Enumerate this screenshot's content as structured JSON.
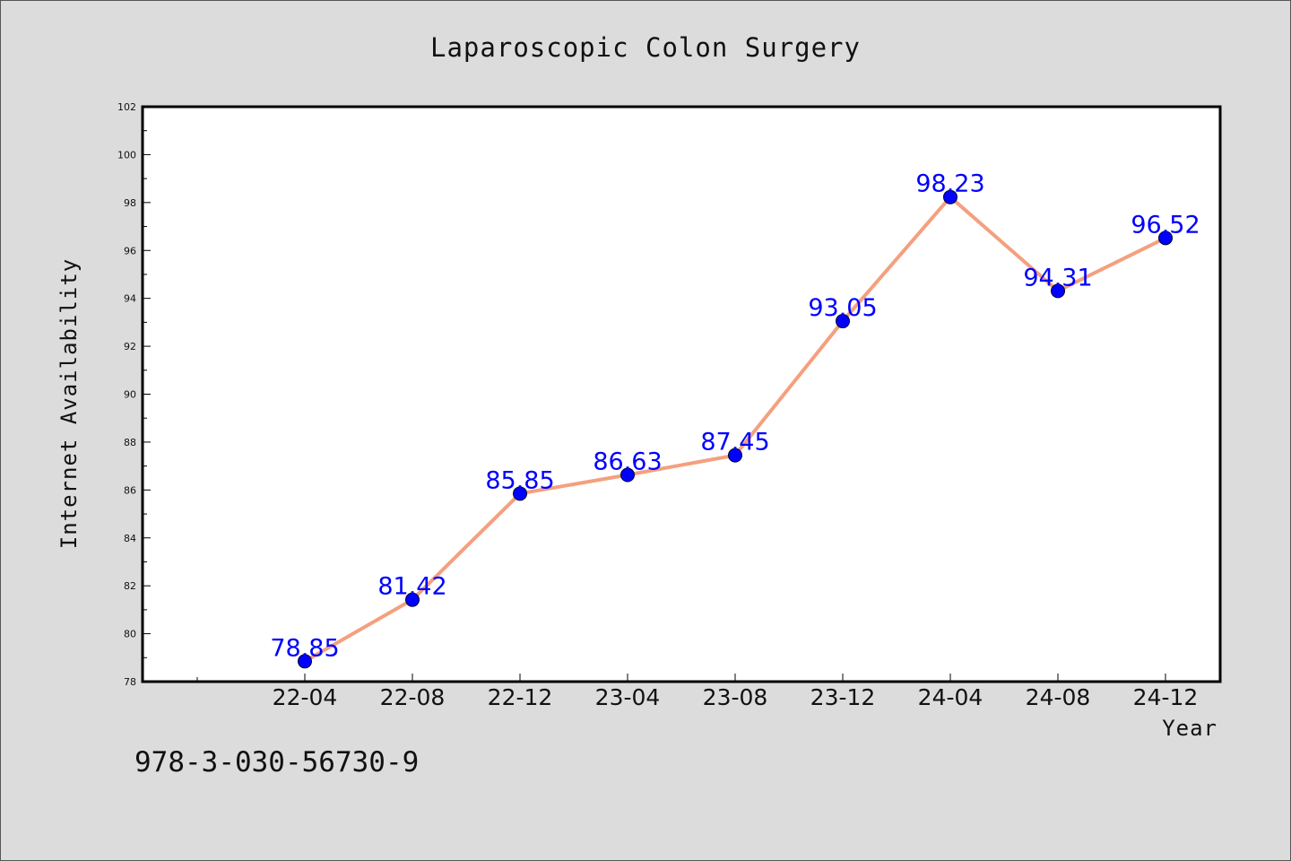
{
  "footnote": "978-3-030-56730-9",
  "colors": {
    "background": "#dcdcdc",
    "plot_background": "#ffffff",
    "line": "#f4a07e",
    "marker": "#0000ff",
    "data_label": "#0000ff"
  },
  "chart_data": {
    "type": "line",
    "title": "Laparoscopic Colon Surgery",
    "xlabel": "Year",
    "ylabel": "Internet Availability",
    "categories": [
      "22-04",
      "22-08",
      "22-12",
      "23-04",
      "23-08",
      "23-12",
      "24-04",
      "24-08",
      "24-12"
    ],
    "data_labels": [
      "78.85",
      "81.42",
      "85.85",
      "86.63",
      "87.45",
      "93.05",
      "98.23",
      "94.31",
      "96.52"
    ],
    "series": [
      {
        "values": [
          78.85,
          81.42,
          85.85,
          86.63,
          87.45,
          93.05,
          98.23,
          94.31,
          96.52
        ]
      }
    ],
    "ylim": [
      78,
      102
    ],
    "yticks": [
      "78",
      "80",
      "82",
      "84",
      "86",
      "88",
      "90",
      "92",
      "94",
      "96",
      "98",
      "100",
      "102"
    ],
    "grid": false,
    "legend": "none",
    "marker": "circle"
  }
}
